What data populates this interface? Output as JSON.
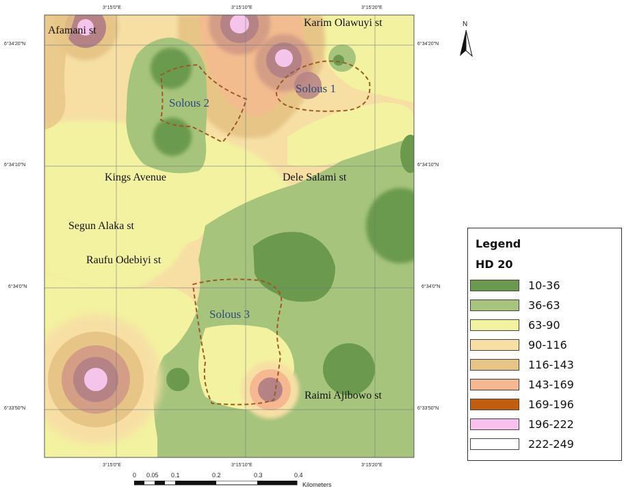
{
  "map": {
    "latitude_ticks": [
      "6°34'20\"N",
      "6°34'10\"N",
      "6°34'0\"N",
      "6°33'50\"N"
    ],
    "longitude_ticks": [
      "3°15'0\"E",
      "3°15'10\"E",
      "3°15'20\"E"
    ],
    "streets": {
      "afamani": "Afamani st",
      "karim": "Karim Olawuyi st",
      "kings": "Kings Avenue",
      "dele": "Dele Salami st",
      "segun": "Segun Alaka st",
      "raufu": "Raufu Odebiyi st",
      "raimi": "Raimi Ajibowo st"
    },
    "zones": {
      "solous1": "Solous 1",
      "solous2": "Solous 2",
      "solous3": "Solous 3"
    },
    "north_label": "N"
  },
  "legend": {
    "title": "Legend",
    "subtitle": "HD 20",
    "classes": [
      {
        "label": "10-36",
        "color": "#6b9a4e"
      },
      {
        "label": "36-63",
        "color": "#a6c47c"
      },
      {
        "label": "63-90",
        "color": "#f3f2a0"
      },
      {
        "label": "90-116",
        "color": "#f7dfa4"
      },
      {
        "label": "116-143",
        "color": "#e7c587"
      },
      {
        "label": "143-169",
        "color": "#f6b890"
      },
      {
        "label": "169-196",
        "color": "#c15e0e"
      },
      {
        "label": "196-222",
        "color": "#f6c1ec"
      },
      {
        "label": "222-249",
        "color": "#ffffff"
      }
    ]
  },
  "scale_bar": {
    "ticks": [
      "0",
      "0.05",
      "0.1",
      "0.2",
      "0.3",
      "0.4"
    ],
    "unit": "Kilometers"
  },
  "colors": {
    "dark_green": "#6b9a4e",
    "light_green": "#a6c47c",
    "yellow": "#f3f2a0",
    "cream": "#f7dfa4",
    "tan": "#e7c587",
    "mauve": "#b58386",
    "pink": "#f4c4ea",
    "zone_outline": "#9b5a22"
  }
}
